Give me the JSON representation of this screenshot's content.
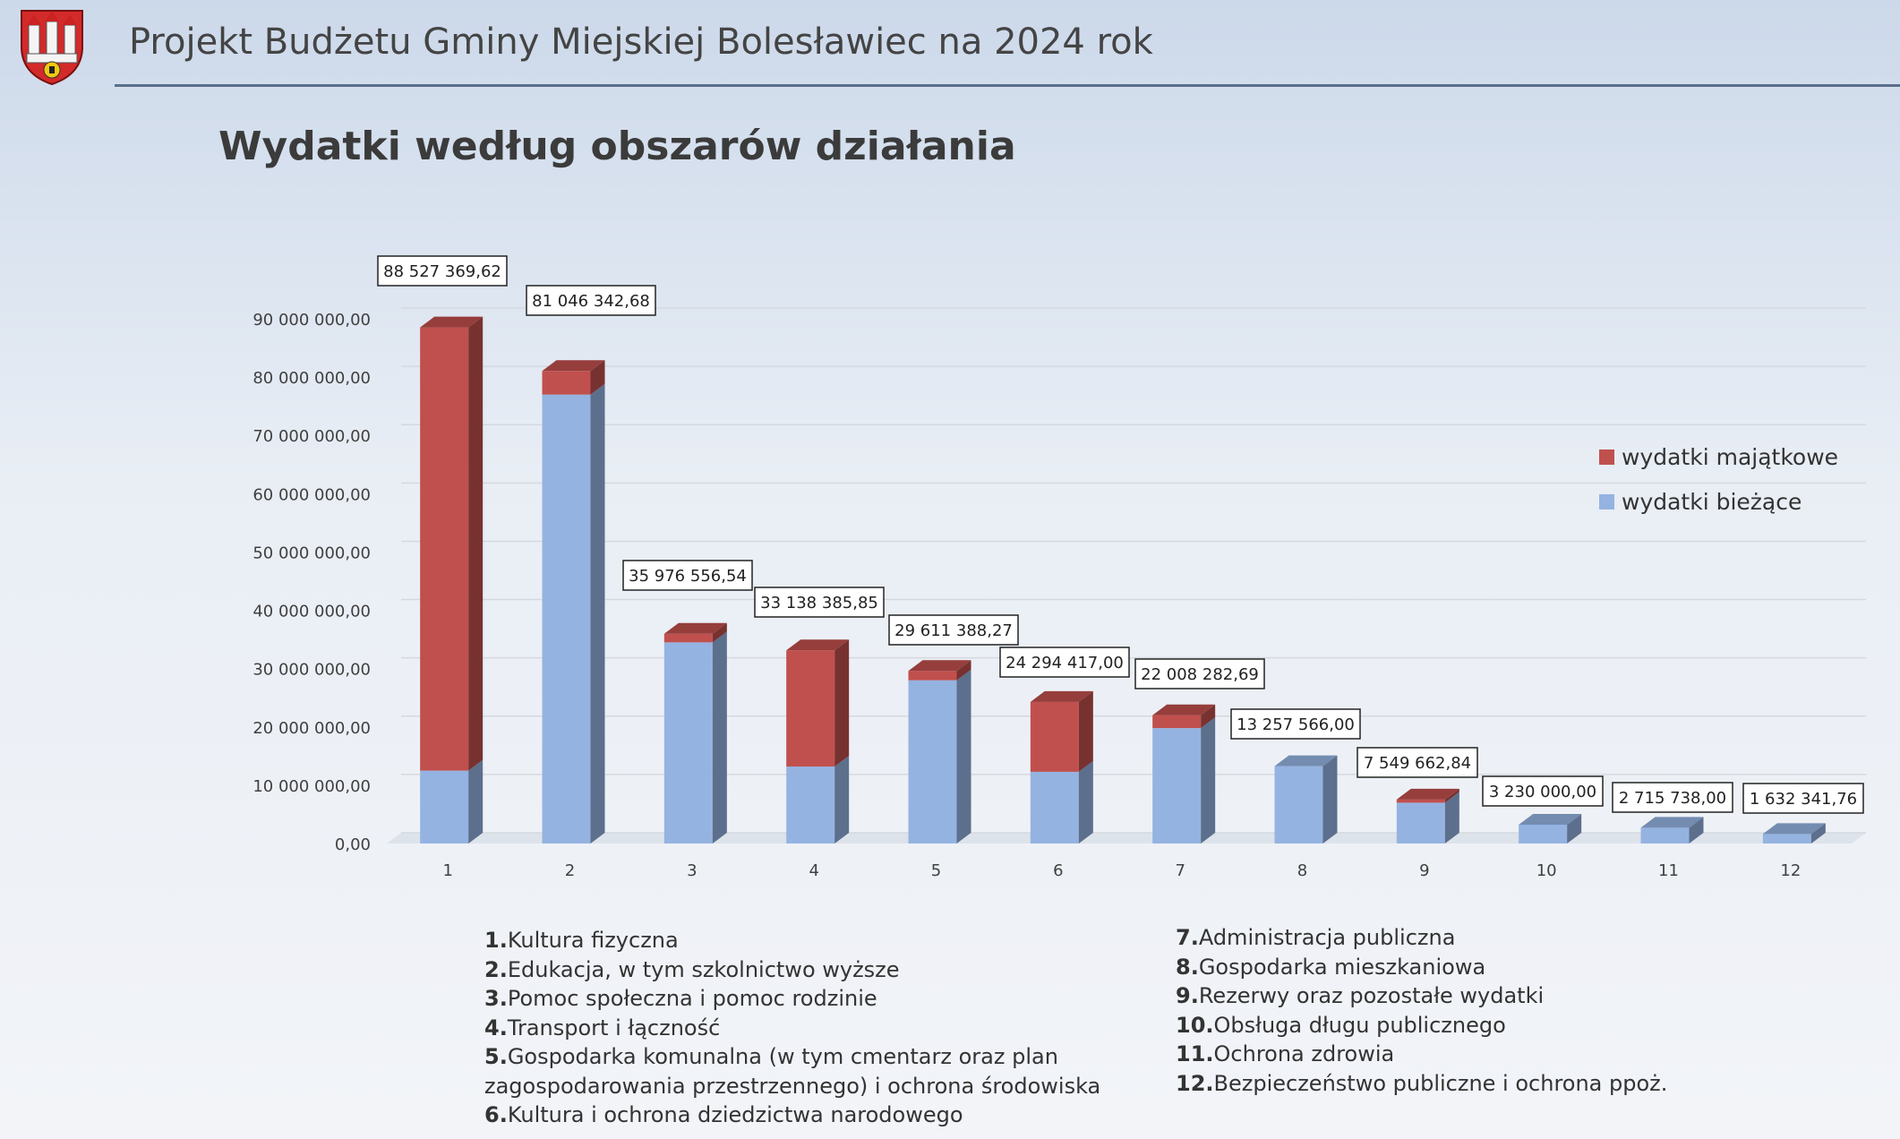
{
  "header": {
    "title": "Projekt Budżetu Gminy Miejskiej Bolesławiec na 2024 rok"
  },
  "section_title": "Wydatki według obszarów działania",
  "colors": {
    "majatkowe": "#c0504d",
    "biezace": "#95b3e1",
    "grid": "#d5d9df",
    "axis_text": "#404040"
  },
  "legend": [
    {
      "label": "wydatki majątkowe",
      "color": "#c0504d"
    },
    {
      "label": "wydatki bieżące",
      "color": "#95b3e1"
    }
  ],
  "chart_data": {
    "type": "bar",
    "stacked": true,
    "three_d": true,
    "categories": [
      "1",
      "2",
      "3",
      "4",
      "5",
      "6",
      "7",
      "8",
      "9",
      "10",
      "11",
      "12"
    ],
    "series": [
      {
        "name": "wydatki bieżące",
        "color": "#95b3e1",
        "values": [
          12500000,
          77000000,
          34500000,
          13200000,
          28000000,
          12300000,
          19800000,
          13257566,
          7000000,
          3230000,
          2715738,
          1632341.76
        ]
      },
      {
        "name": "wydatki majątkowe",
        "color": "#c0504d",
        "values": [
          76027369.62,
          4046342.68,
          1476556.54,
          19938385.85,
          1611388.27,
          11994417.0,
          2208282.69,
          0,
          549662.84,
          0,
          0,
          0
        ]
      }
    ],
    "total_labels": [
      "88 527 369,62",
      "81 046 342,68",
      "35 976 556,54",
      "33 138 385,85",
      "29 611 388,27",
      "24 294 417,00",
      "22 008 282,69",
      "13 257 566,00",
      "7 549 662,84",
      "3 230 000,00",
      "2 715 738,00",
      "1 632 341,76"
    ],
    "y_ticks": [
      {
        "value": 0,
        "label": "0,00"
      },
      {
        "value": 10000000,
        "label": "10 000 000,00"
      },
      {
        "value": 20000000,
        "label": "20 000 000,00"
      },
      {
        "value": 30000000,
        "label": "30 000 000,00"
      },
      {
        "value": 40000000,
        "label": "40 000 000,00"
      },
      {
        "value": 50000000,
        "label": "50 000 000,00"
      },
      {
        "value": 60000000,
        "label": "60 000 000,00"
      },
      {
        "value": 70000000,
        "label": "70 000 000,00"
      },
      {
        "value": 80000000,
        "label": "80 000 000,00"
      },
      {
        "value": 90000000,
        "label": "90 000 000,00"
      }
    ],
    "ylim": [
      0,
      90000000
    ],
    "grid": true,
    "legend_position": "right"
  },
  "category_list": {
    "left": [
      {
        "num": "1.",
        "text": "Kultura fizyczna"
      },
      {
        "num": "2.",
        "text": "Edukacja, w tym szkolnictwo wyższe"
      },
      {
        "num": "3.",
        "text": "Pomoc społeczna i pomoc rodzinie"
      },
      {
        "num": "4.",
        "text": "Transport i łączność"
      },
      {
        "num": "5.",
        "text": "Gospodarka komunalna (w tym cmentarz oraz plan"
      },
      {
        "num": "",
        "text": "zagospodarowania przestrzennego) i  ochrona środowiska"
      },
      {
        "num": "6.",
        "text": "Kultura i ochrona dziedzictwa narodowego"
      }
    ],
    "right": [
      {
        "num": "7.",
        "text": "Administracja publiczna"
      },
      {
        "num": "8.",
        "text": "Gospodarka mieszkaniowa"
      },
      {
        "num": "9.",
        "text": "Rezerwy oraz pozostałe wydatki"
      },
      {
        "num": "10.",
        "text": "Obsługa długu publicznego"
      },
      {
        "num": "11.",
        "text": "Ochrona zdrowia"
      },
      {
        "num": "12.",
        "text": "Bezpieczeństwo publiczne i ochrona ppoż."
      }
    ]
  }
}
